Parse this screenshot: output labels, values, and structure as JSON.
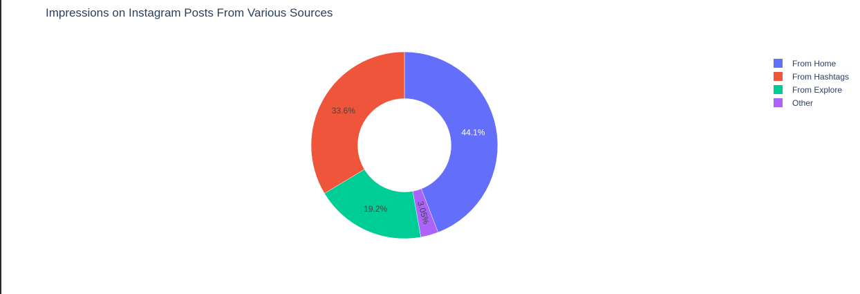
{
  "chart_data": {
    "type": "pie",
    "title": "Impressions on Instagram Posts From Various Sources",
    "hole": 0.5,
    "legend_position": "top-right",
    "slices": [
      {
        "label": "From Home",
        "percent": 44.1,
        "percent_label": "44.1%",
        "color": "#636efa",
        "text_color": "#ffffff",
        "text_orientation": "horizontal"
      },
      {
        "label": "Other",
        "percent": 3.05,
        "percent_label": "3.05%",
        "color": "#ab63fa",
        "text_color": "#444444",
        "text_orientation": "radial"
      },
      {
        "label": "From Explore",
        "percent": 19.2,
        "percent_label": "19.2%",
        "color": "#00cc96",
        "text_color": "#444444",
        "text_orientation": "horizontal"
      },
      {
        "label": "From Hashtags",
        "percent": 33.6,
        "percent_label": "33.6%",
        "color": "#ef553b",
        "text_color": "#444444",
        "text_orientation": "horizontal"
      }
    ],
    "legend": [
      {
        "label": "From Home",
        "color": "#636efa"
      },
      {
        "label": "From Hashtags",
        "color": "#ef553b"
      },
      {
        "label": "From Explore",
        "color": "#00cc96"
      },
      {
        "label": "Other",
        "color": "#ab63fa"
      }
    ]
  }
}
